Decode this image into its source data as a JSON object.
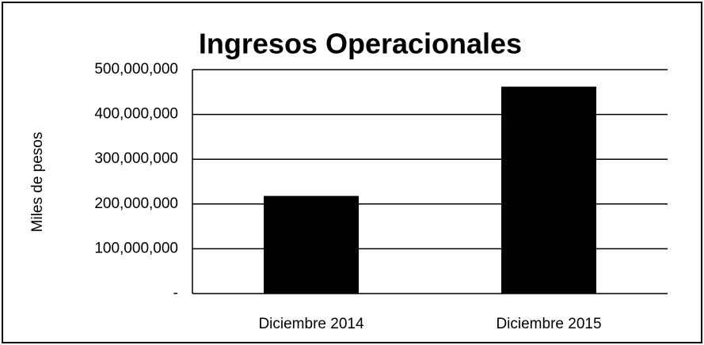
{
  "chart_data": {
    "type": "bar",
    "title": "Ingresos Operacionales",
    "y_label": "Miles de pesos",
    "categories": [
      "Diciembre 2014",
      "Diciembre 2015"
    ],
    "values": [
      218000000,
      462000000
    ],
    "color": "#000000",
    "ylim": [
      0,
      500000000
    ],
    "yticks": [
      {
        "value": 0,
        "label": "-"
      },
      {
        "value": 100000000,
        "label": "100,000,000"
      },
      {
        "value": 200000000,
        "label": "200,000,000"
      },
      {
        "value": 300000000,
        "label": "300,000,000"
      },
      {
        "value": 400000000,
        "label": "400,000,000"
      },
      {
        "value": 500000000,
        "label": "500,000,000"
      }
    ],
    "grid": true
  }
}
